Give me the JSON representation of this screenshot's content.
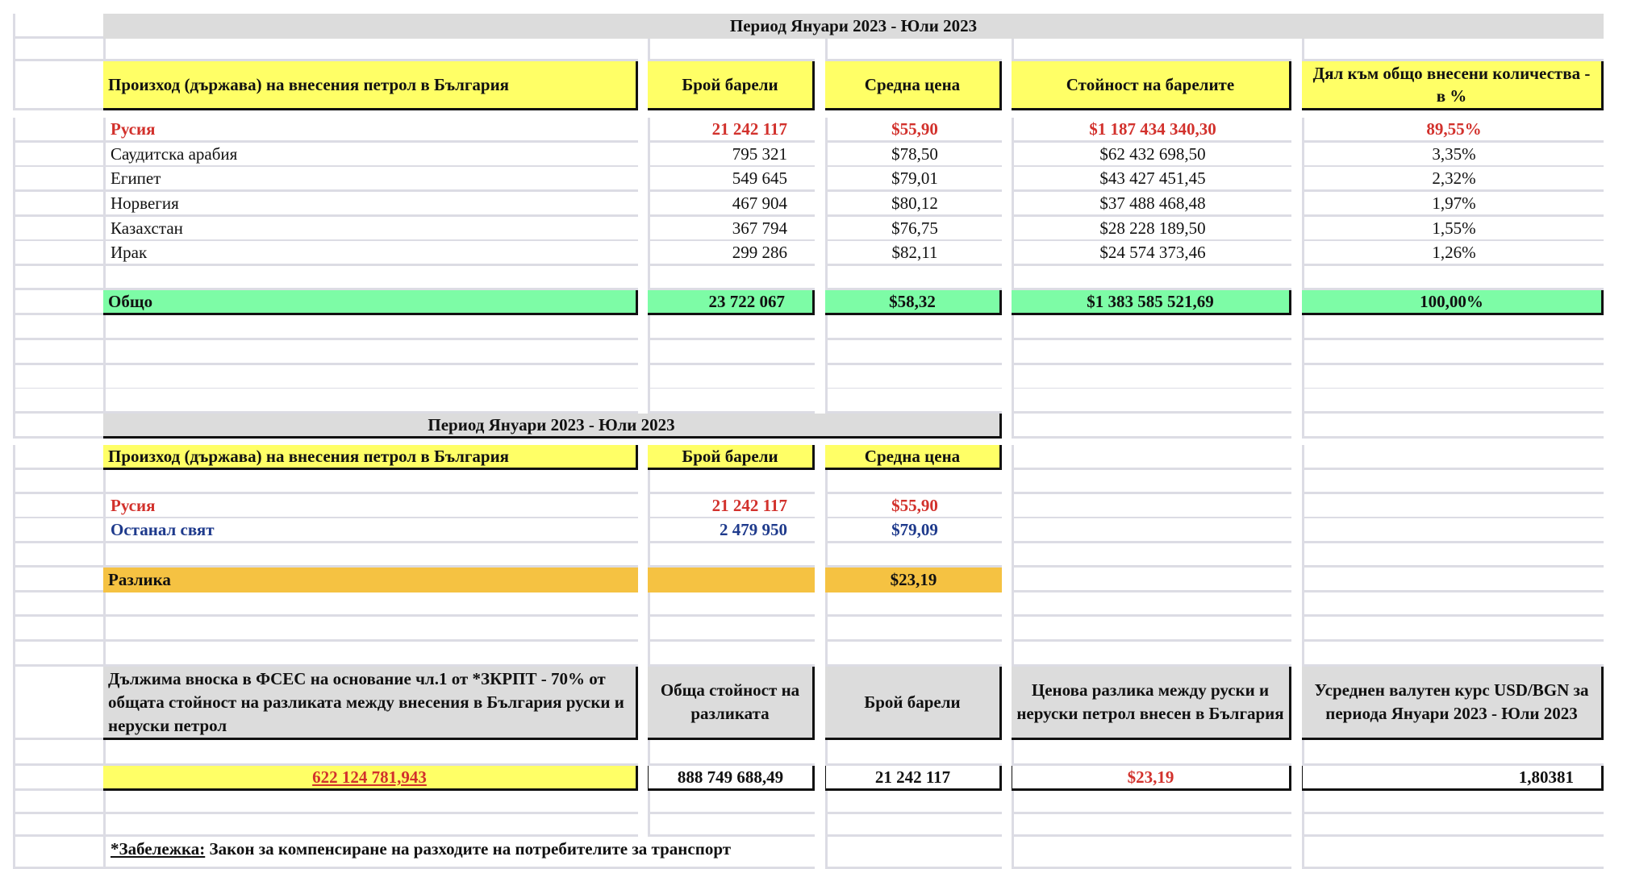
{
  "table1": {
    "period": "Период Януари 2023 - Юли 2023",
    "headers": {
      "origin": "Произход (държава) на внесения петрол в България",
      "barrels": "Брой барели",
      "avg_price": "Средна цена",
      "value": "Стойност на барелите",
      "share": "Дял към общо внесени количества - в %"
    },
    "rows": [
      {
        "country": "Русия",
        "barrels": "21 242 117",
        "price": "$55,90",
        "value": "$1 187 434 340,30",
        "share": "89,55%"
      },
      {
        "country": "Саудитска арабия",
        "barrels": "795 321",
        "price": "$78,50",
        "value": "$62 432 698,50",
        "share": "3,35%"
      },
      {
        "country": "Египет",
        "barrels": "549 645",
        "price": "$79,01",
        "value": "$43 427 451,45",
        "share": "2,32%"
      },
      {
        "country": "Норвегия",
        "barrels": "467 904",
        "price": "$80,12",
        "value": "$37 488 468,48",
        "share": "1,97%"
      },
      {
        "country": "Казахстан",
        "barrels": "367 794",
        "price": "$76,75",
        "value": "$28 228 189,50",
        "share": "1,55%"
      },
      {
        "country": "Ирак",
        "barrels": "299 286",
        "price": "$82,11",
        "value": "$24 574 373,46",
        "share": "1,26%"
      }
    ],
    "total": {
      "label": "Общо",
      "barrels": "23 722 067",
      "price": "$58,32",
      "value": "$1 383 585 521,69",
      "share": "100,00%"
    }
  },
  "table2": {
    "period": "Период Януари 2023 - Юли 2023",
    "headers": {
      "origin": "Произход (държава) на внесения петрол в България",
      "barrels": "Брой барели",
      "avg_price": "Средна цена"
    },
    "russia": {
      "label": "Русия",
      "barrels": "21 242 117",
      "price": "$55,90"
    },
    "rest": {
      "label": "Останал свят",
      "barrels": "2 479 950",
      "price": "$79,09"
    },
    "difference": {
      "label": "Разлика",
      "price": "$23,19"
    }
  },
  "table3": {
    "headers": {
      "due": "Дължима вноска в ФСЕС на основание чл.1 от *ЗКРПТ - 70% от общата стойност на разликата между внесения в България руски и неруски петрол",
      "total_diff": "Обща стойност на разликата",
      "barrels": "Брой барели",
      "price_diff": "Ценова разлика между руски и неруски петрол внесен в България",
      "fx": "Усреднен валутен курс USD/BGN за периода Януари 2023 - Юли 2023"
    },
    "values": {
      "due": "622 124 781,943",
      "total_diff": "888 749 688,49",
      "barrels": "21 242 117",
      "price_diff": "$23,19",
      "fx": "1,80381"
    }
  },
  "note": {
    "label": "*Забележка:",
    "text": " Закон за компенсиране на разходите на потребителите за транспорт"
  },
  "colors": {
    "header_yellow": "#ffff66",
    "total_green": "#7dfca6",
    "difference_orange": "#f5c242",
    "title_grey": "#dcdcdc",
    "russia_red": "#d2312c",
    "rest_blue": "#1e3a8c"
  }
}
